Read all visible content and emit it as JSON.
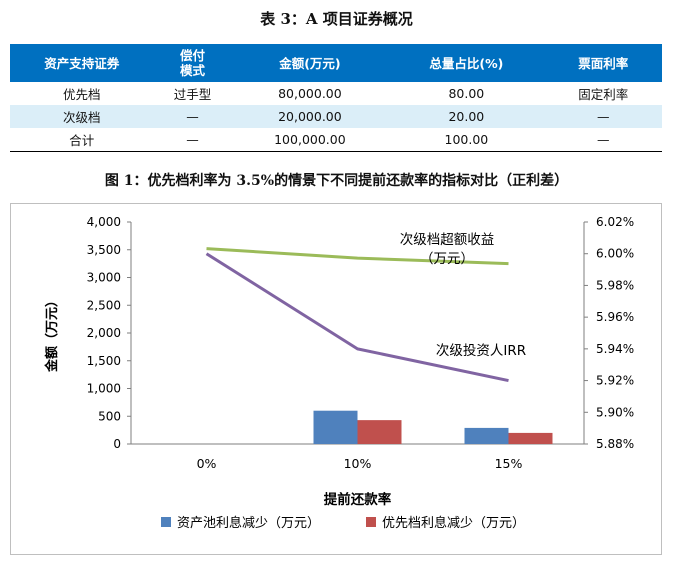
{
  "table": {
    "title": "表 3：A 项目证券概况",
    "headers": [
      "资产支持证券",
      "偿付\n模式",
      "金额(万元)",
      "总量占比(%)",
      "票面利率"
    ],
    "rows": [
      [
        "优先档",
        "过手型",
        "80,000.00",
        "80.00",
        "固定利率"
      ],
      [
        "次级档",
        "—",
        "20,000.00",
        "20.00",
        "—"
      ],
      [
        "合计",
        "—",
        "100,000.00",
        "100.00",
        "—"
      ]
    ]
  },
  "figure_title": "图 1：优先档利率为 3.5%的情景下不同提前还款率的指标对比（正利差）",
  "chart_data": {
    "type": "bar",
    "categories": [
      "0%",
      "10%",
      "15%"
    ],
    "xlabel": "提前还款率",
    "ylabel": "金额（万元）",
    "ylim": [
      0,
      4000
    ],
    "yticks": [
      "0",
      "500",
      "1,000",
      "1,500",
      "2,000",
      "2,500",
      "3,000",
      "3,500",
      "4,000"
    ],
    "y2lim": [
      5.88,
      6.02
    ],
    "y2ticks": [
      "5.88%",
      "5.90%",
      "5.92%",
      "5.94%",
      "5.96%",
      "5.98%",
      "6.00%",
      "6.02%"
    ],
    "series": [
      {
        "name": "资产池利息减少（万元）",
        "axis": "left",
        "type": "bar",
        "color": "#4f81bd",
        "values": [
          0,
          600,
          290
        ]
      },
      {
        "name": "优先档利息减少（万元）",
        "axis": "left",
        "type": "bar",
        "color": "#c0504d",
        "values": [
          0,
          430,
          200
        ]
      },
      {
        "name": "次级档超额收益（万元）",
        "axis": "left",
        "type": "line",
        "color": "#9bbb59",
        "values": [
          3520,
          3350,
          3250
        ]
      },
      {
        "name": "次级投资人IRR",
        "axis": "right",
        "type": "line",
        "color": "#8064a2",
        "values": [
          6.0,
          5.94,
          5.92
        ]
      }
    ],
    "annotations": [
      "次级档超额收益",
      "（万元）",
      "次级投资人IRR"
    ],
    "legend_position": "bottom"
  }
}
